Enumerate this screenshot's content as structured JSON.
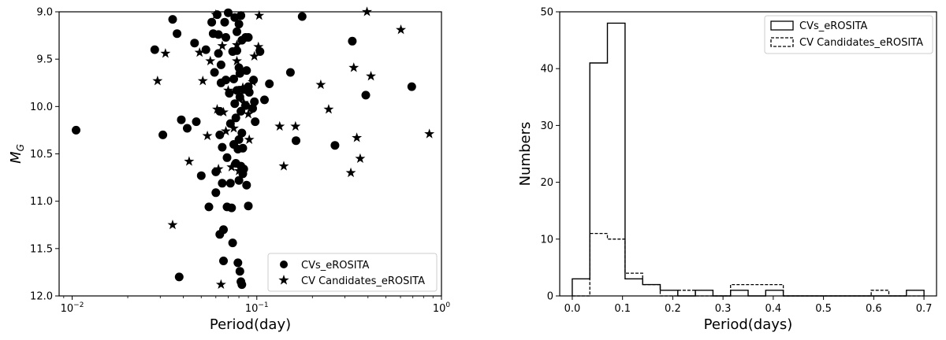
{
  "chart_data": [
    {
      "type": "scatter",
      "xscale": "log",
      "xlim": [
        0.0085,
        1.0
      ],
      "ylim": [
        12.0,
        9.0
      ],
      "y_inverted": true,
      "xlabel": "Period(day)",
      "ylabel_main": "M",
      "ylabel_sub": "G",
      "xticks": [
        {
          "value": 0.01,
          "base": "10",
          "exp": "−2"
        },
        {
          "value": 0.1,
          "base": "10",
          "exp": "−1"
        },
        {
          "value": 1.0,
          "base": "10",
          "exp": "0"
        }
      ],
      "yticks": [
        "9.0",
        "9.5",
        "10.0",
        "10.5",
        "11.0",
        "11.5",
        "12.0"
      ],
      "grid": false,
      "legend_position": "lower-right",
      "legend": [
        "CVs_eROSITA",
        "CV Candidates_eROSITA"
      ],
      "series": [
        {
          "name": "CVs_eROSITA",
          "marker": "circle",
          "color": "#000000",
          "points": [
            [
              0.0105,
              10.25
            ],
            [
              0.028,
              9.4
            ],
            [
              0.031,
              10.3
            ],
            [
              0.035,
              9.08
            ],
            [
              0.037,
              9.23
            ],
            [
              0.038,
              11.8
            ],
            [
              0.039,
              10.14
            ],
            [
              0.042,
              10.23
            ],
            [
              0.046,
              9.33
            ],
            [
              0.047,
              10.16
            ],
            [
              0.05,
              10.73
            ],
            [
              0.053,
              9.4
            ],
            [
              0.055,
              11.06
            ],
            [
              0.057,
              9.11
            ],
            [
              0.058,
              9.23
            ],
            [
              0.059,
              9.64
            ],
            [
              0.06,
              10.69
            ],
            [
              0.06,
              10.91
            ],
            [
              0.061,
              9.03
            ],
            [
              0.062,
              9.24
            ],
            [
              0.062,
              9.44
            ],
            [
              0.063,
              10.05
            ],
            [
              0.063,
              10.3
            ],
            [
              0.063,
              11.35
            ],
            [
              0.064,
              9.75
            ],
            [
              0.064,
              9.56
            ],
            [
              0.065,
              10.43
            ],
            [
              0.065,
              10.81
            ],
            [
              0.066,
              11.3
            ],
            [
              0.066,
              11.63
            ],
            [
              0.067,
              9.11
            ],
            [
              0.068,
              9.27
            ],
            [
              0.068,
              9.72
            ],
            [
              0.069,
              10.54
            ],
            [
              0.069,
              11.06
            ],
            [
              0.07,
              9.01
            ],
            [
              0.071,
              9.86
            ],
            [
              0.072,
              10.18
            ],
            [
              0.072,
              10.81
            ],
            [
              0.073,
              11.07
            ],
            [
              0.074,
              9.42
            ],
            [
              0.074,
              11.44
            ],
            [
              0.075,
              9.71
            ],
            [
              0.075,
              10.4
            ],
            [
              0.076,
              9.06
            ],
            [
              0.076,
              9.97
            ],
            [
              0.077,
              10.12
            ],
            [
              0.077,
              10.6
            ],
            [
              0.078,
              9.21
            ],
            [
              0.078,
              9.41
            ],
            [
              0.078,
              9.83
            ],
            [
              0.079,
              10.45
            ],
            [
              0.079,
              11.65
            ],
            [
              0.08,
              9.13
            ],
            [
              0.08,
              9.59
            ],
            [
              0.08,
              10.35
            ],
            [
              0.08,
              10.78
            ],
            [
              0.081,
              9.65
            ],
            [
              0.081,
              9.9
            ],
            [
              0.081,
              11.74
            ],
            [
              0.082,
              9.04
            ],
            [
              0.082,
              10.05
            ],
            [
              0.082,
              10.63
            ],
            [
              0.082,
              11.85
            ],
            [
              0.083,
              9.3
            ],
            [
              0.083,
              10.28
            ],
            [
              0.083,
              11.88
            ],
            [
              0.084,
              10.44
            ],
            [
              0.084,
              10.71
            ],
            [
              0.085,
              9.82
            ],
            [
              0.085,
              10.66
            ],
            [
              0.087,
              9.27
            ],
            [
              0.087,
              9.99
            ],
            [
              0.088,
              9.62
            ],
            [
              0.088,
              10.83
            ],
            [
              0.09,
              9.27
            ],
            [
              0.09,
              9.79
            ],
            [
              0.09,
              11.05
            ],
            [
              0.091,
              9.85
            ],
            [
              0.095,
              10.02
            ],
            [
              0.096,
              9.72
            ],
            [
              0.097,
              9.95
            ],
            [
              0.098,
              10.16
            ],
            [
              0.104,
              9.42
            ],
            [
              0.11,
              9.93
            ],
            [
              0.117,
              9.76
            ],
            [
              0.152,
              9.64
            ],
            [
              0.163,
              10.36
            ],
            [
              0.176,
              9.05
            ],
            [
              0.265,
              10.41
            ],
            [
              0.329,
              9.31
            ],
            [
              0.389,
              9.88
            ],
            [
              0.69,
              9.79
            ]
          ]
        },
        {
          "name": "CV Candidates_eROSITA",
          "marker": "star",
          "color": "#000000",
          "points": [
            [
              0.029,
              9.73
            ],
            [
              0.032,
              9.44
            ],
            [
              0.035,
              11.25
            ],
            [
              0.043,
              10.58
            ],
            [
              0.049,
              9.43
            ],
            [
              0.051,
              9.73
            ],
            [
              0.054,
              10.31
            ],
            [
              0.056,
              9.52
            ],
            [
              0.06,
              9.03
            ],
            [
              0.061,
              10.03
            ],
            [
              0.062,
              10.66
            ],
            [
              0.064,
              11.88
            ],
            [
              0.065,
              9.36
            ],
            [
              0.066,
              10.06
            ],
            [
              0.068,
              10.26
            ],
            [
              0.07,
              9.83
            ],
            [
              0.073,
              10.64
            ],
            [
              0.075,
              10.23
            ],
            [
              0.078,
              9.52
            ],
            [
              0.078,
              9.35
            ],
            [
              0.08,
              10.68
            ],
            [
              0.084,
              9.8
            ],
            [
              0.085,
              9.96
            ],
            [
              0.09,
              10.08
            ],
            [
              0.091,
              10.35
            ],
            [
              0.095,
              9.74
            ],
            [
              0.097,
              9.47
            ],
            [
              0.102,
              9.37
            ],
            [
              0.103,
              9.04
            ],
            [
              0.133,
              10.21
            ],
            [
              0.14,
              10.63
            ],
            [
              0.162,
              10.21
            ],
            [
              0.222,
              9.77
            ],
            [
              0.245,
              10.03
            ],
            [
              0.323,
              10.7
            ],
            [
              0.335,
              9.59
            ],
            [
              0.348,
              10.33
            ],
            [
              0.363,
              10.55
            ],
            [
              0.395,
              9.0
            ],
            [
              0.415,
              9.68
            ],
            [
              0.603,
              9.19
            ],
            [
              0.86,
              10.29
            ]
          ]
        }
      ]
    },
    {
      "type": "histogram",
      "xlabel": "Period(days)",
      "ylabel": "Numbers",
      "xlim": [
        -0.025,
        0.725
      ],
      "ylim": [
        0,
        50
      ],
      "bin_edges": [
        0.0,
        0.035,
        0.07,
        0.105,
        0.14,
        0.175,
        0.21,
        0.245,
        0.28,
        0.315,
        0.35,
        0.385,
        0.42,
        0.455,
        0.49,
        0.525,
        0.56,
        0.595,
        0.63,
        0.665,
        0.7
      ],
      "xticks": [
        "0.0",
        "0.1",
        "0.2",
        "0.3",
        "0.4",
        "0.5",
        "0.6",
        "0.7"
      ],
      "yticks": [
        "0",
        "10",
        "20",
        "30",
        "40",
        "50"
      ],
      "grid": false,
      "legend_position": "top-right",
      "series": [
        {
          "name": "CVs_eROSITA",
          "style": "solid",
          "counts": [
            3,
            41,
            48,
            3,
            2,
            1,
            0,
            1,
            0,
            1,
            0,
            1,
            0,
            0,
            0,
            0,
            0,
            0,
            0,
            1
          ]
        },
        {
          "name": "CV Candidates_eROSITA",
          "style": "dashed",
          "counts": [
            0,
            11,
            10,
            4,
            2,
            0,
            1,
            0,
            0,
            2,
            2,
            2,
            0,
            0,
            0,
            0,
            0,
            1,
            0,
            0
          ]
        }
      ]
    }
  ]
}
